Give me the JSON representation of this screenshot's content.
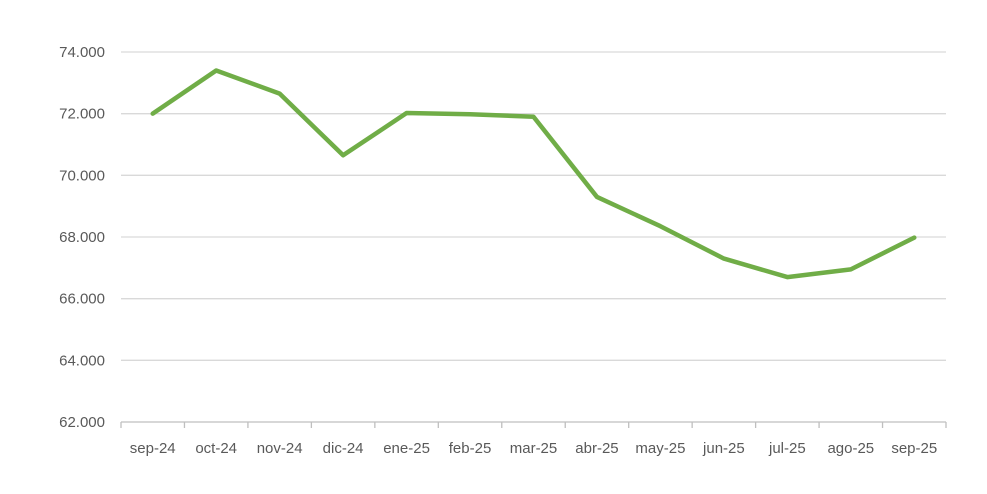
{
  "chart_data": {
    "type": "line",
    "title": "",
    "xlabel": "",
    "ylabel": "",
    "categories": [
      "sep-24",
      "oct-24",
      "nov-24",
      "dic-24",
      "ene-25",
      "feb-25",
      "mar-25",
      "abr-25",
      "may-25",
      "jun-25",
      "jul-25",
      "ago-25",
      "sep-25"
    ],
    "series": [
      {
        "values": [
          72000,
          73400,
          72650,
          70650,
          72020,
          71980,
          71900,
          69300,
          68350,
          67300,
          66700,
          66950,
          67980
        ],
        "color": "#70ad47"
      }
    ],
    "y_ticks": [
      62000,
      64000,
      66000,
      68000,
      70000,
      72000,
      74000
    ],
    "y_tick_labels": [
      "62.000",
      "64.000",
      "66.000",
      "68.000",
      "70.000",
      "72.000",
      "74.000"
    ],
    "ylim": [
      62000,
      74000
    ],
    "grid": true,
    "legend": "none"
  }
}
